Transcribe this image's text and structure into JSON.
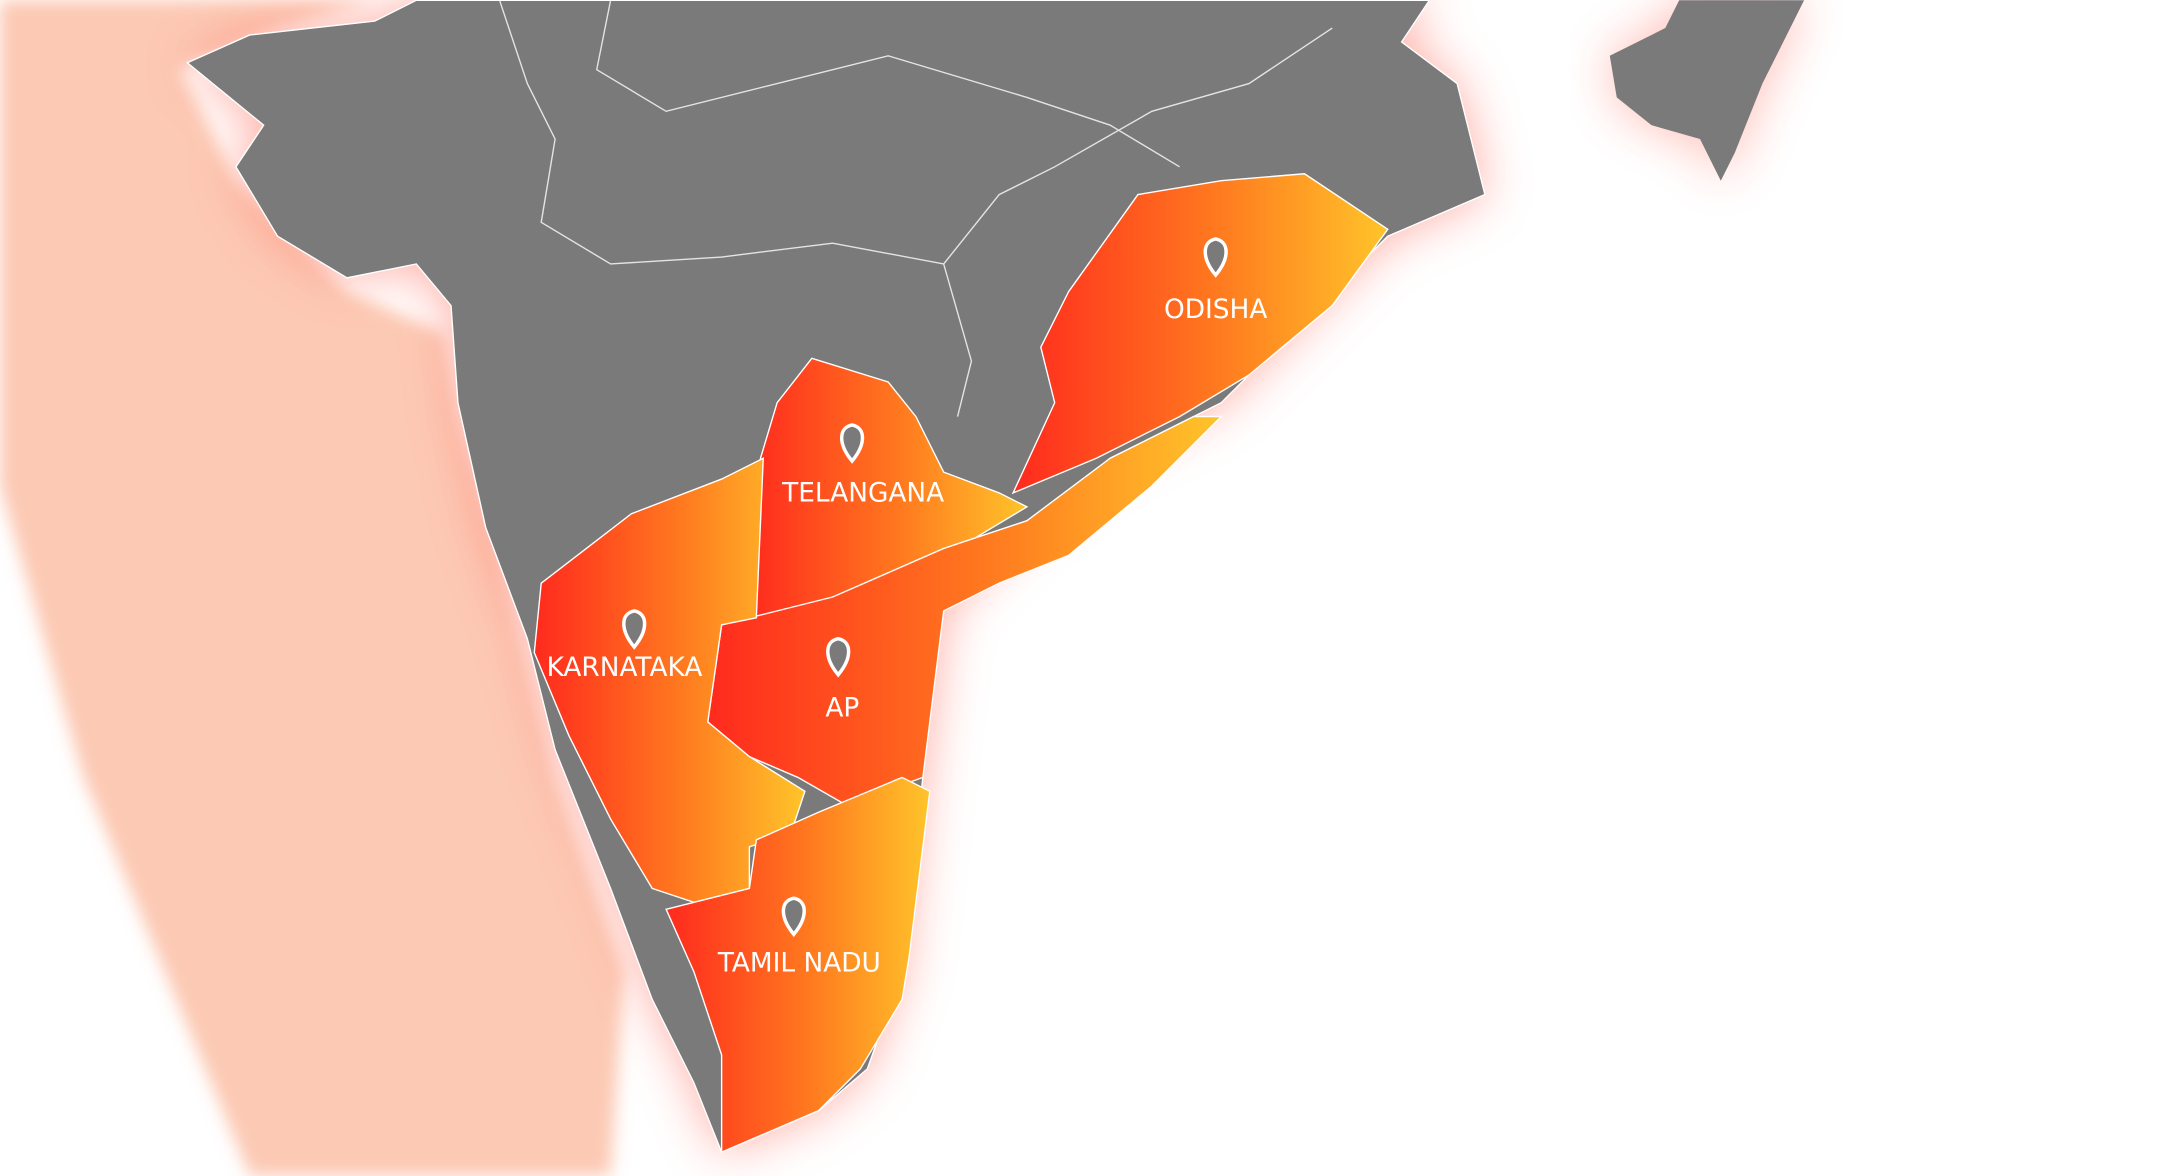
{
  "regions": [
    {
      "label": "ODISHA"
    },
    {
      "label": "TELANGANA"
    },
    {
      "label": "KARNATAKA"
    },
    {
      "label": "AP"
    },
    {
      "label": "TAMIL NADU"
    }
  ]
}
